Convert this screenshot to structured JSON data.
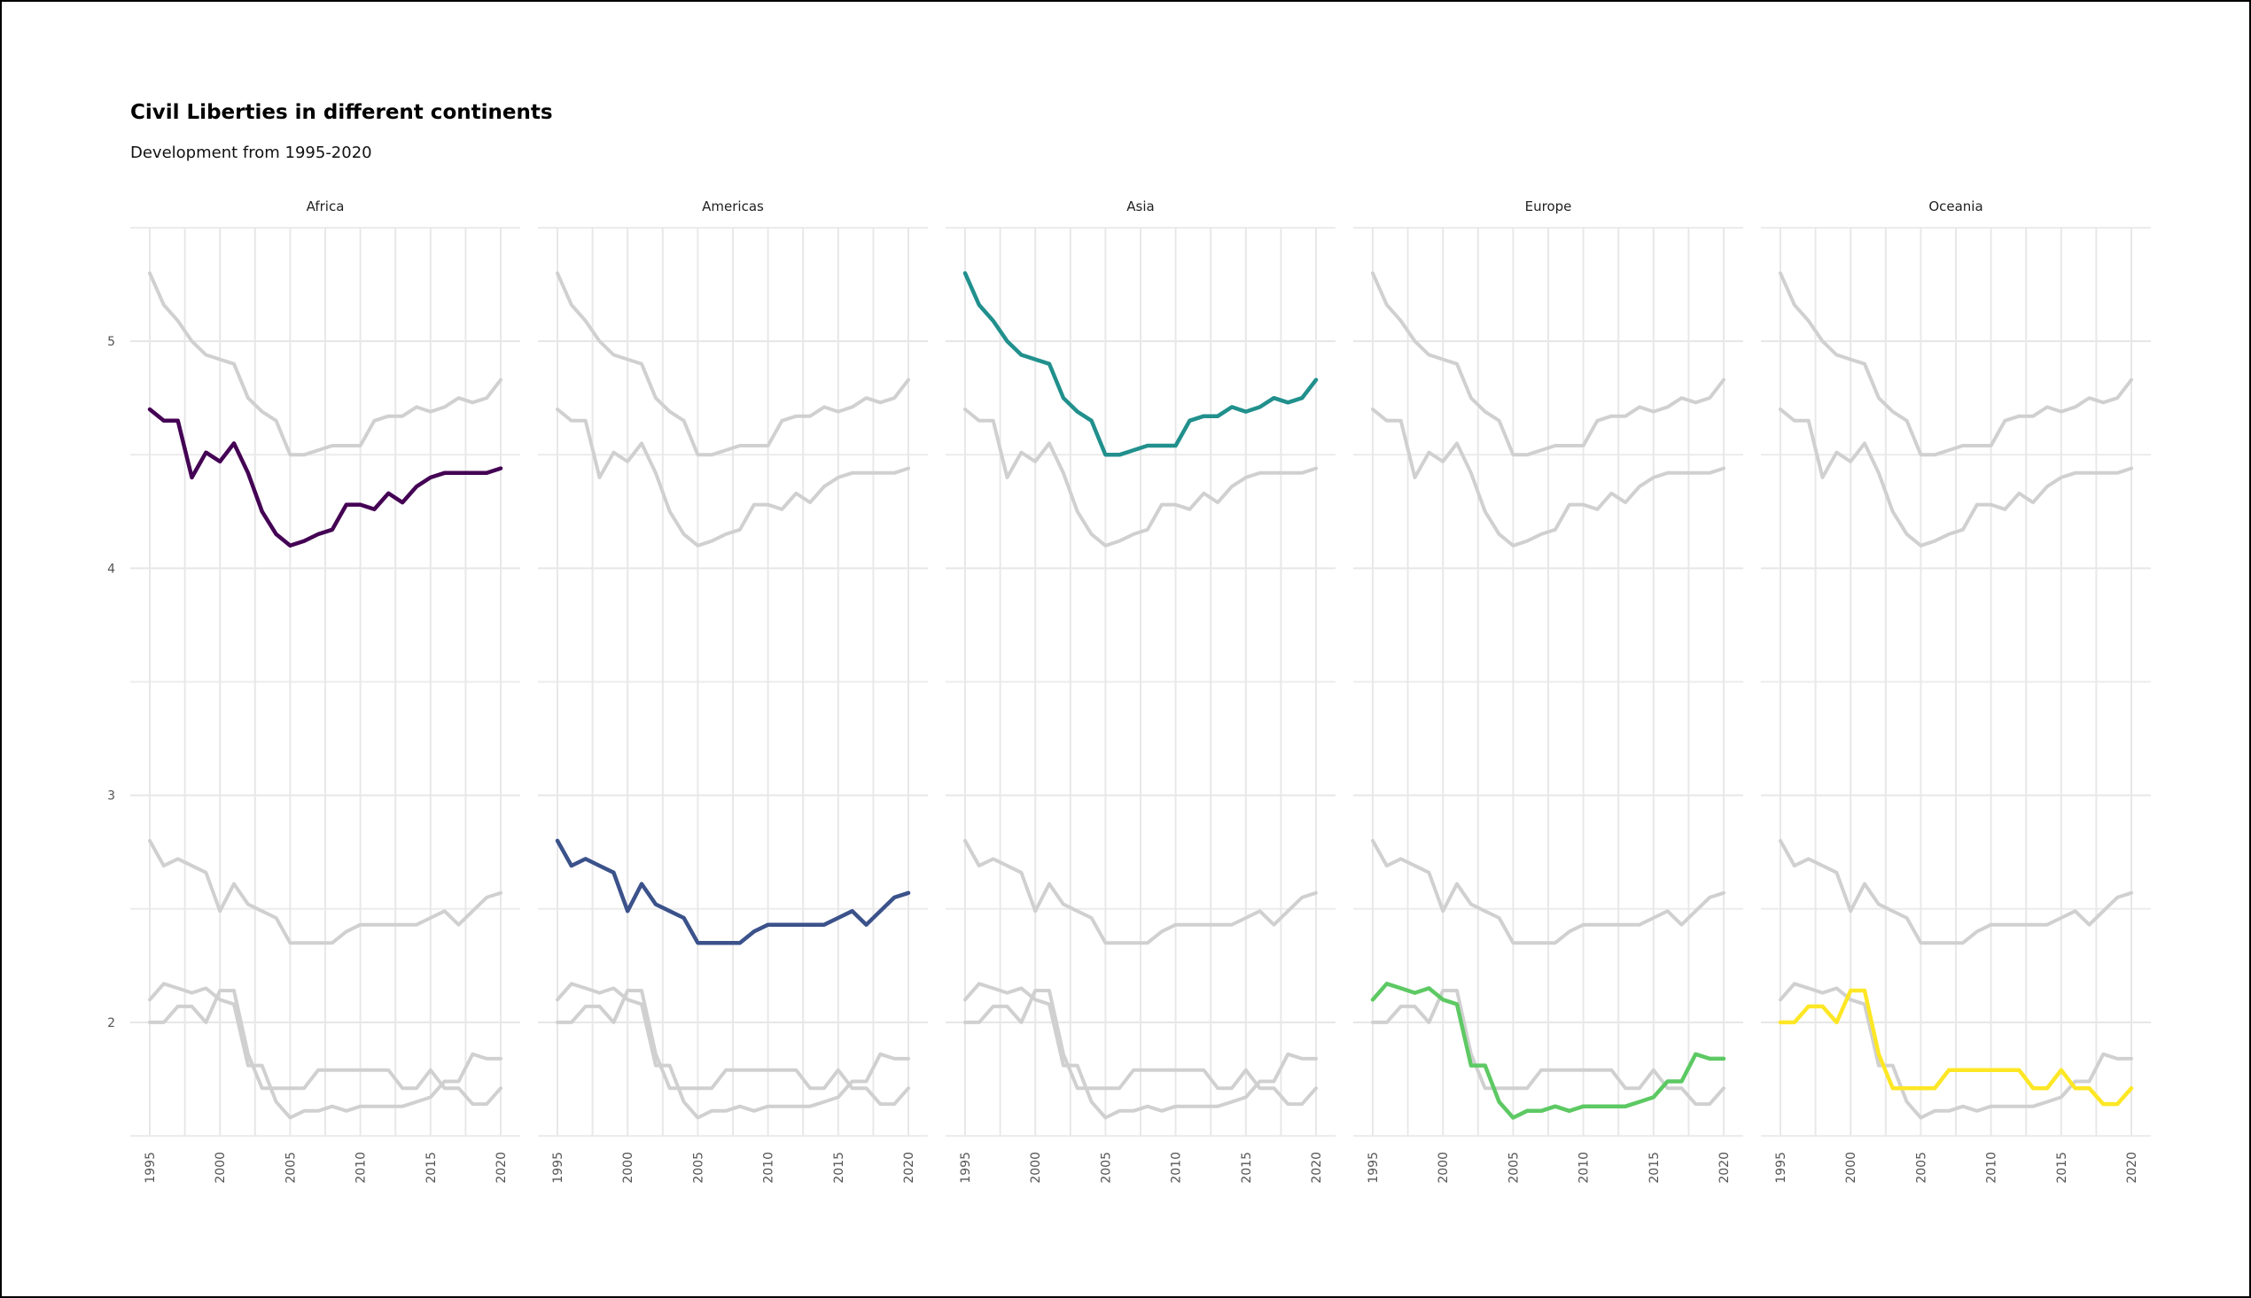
{
  "chart_data": {
    "type": "line",
    "title": "Civil Liberties in different continents",
    "subtitle": "Development from 1995-2020",
    "xlabel": "",
    "ylabel": "",
    "xlim": [
      1995,
      2020
    ],
    "ylim": [
      1.5,
      5.5
    ],
    "x_ticks": [
      "1995",
      "2000",
      "2005",
      "2010",
      "2015",
      "2020"
    ],
    "y_ticks": [
      "2",
      "3",
      "4",
      "5"
    ],
    "grid": true,
    "legend": "none",
    "background_color": "#d0d0d0",
    "x": [
      1995,
      1996,
      1997,
      1998,
      1999,
      2000,
      2001,
      2002,
      2003,
      2004,
      2005,
      2006,
      2007,
      2008,
      2009,
      2010,
      2011,
      2012,
      2013,
      2014,
      2015,
      2016,
      2017,
      2018,
      2019,
      2020
    ],
    "panels": [
      {
        "name": "Africa",
        "color": "#440154",
        "values": [
          4.7,
          4.65,
          4.65,
          4.4,
          4.51,
          4.47,
          4.55,
          4.42,
          4.25,
          4.15,
          4.1,
          4.12,
          4.15,
          4.17,
          4.28,
          4.28,
          4.26,
          4.33,
          4.29,
          4.36,
          4.4,
          4.42,
          4.42,
          4.42,
          4.42,
          4.44
        ]
      },
      {
        "name": "Americas",
        "color": "#3b528b",
        "values": [
          2.8,
          2.69,
          2.72,
          2.69,
          2.66,
          2.49,
          2.61,
          2.52,
          2.49,
          2.46,
          2.35,
          2.35,
          2.35,
          2.35,
          2.4,
          2.43,
          2.43,
          2.43,
          2.43,
          2.43,
          2.46,
          2.49,
          2.43,
          2.49,
          2.55,
          2.57
        ]
      },
      {
        "name": "Asia",
        "color": "#21908d",
        "values": [
          5.3,
          5.16,
          5.09,
          5.0,
          4.94,
          4.92,
          4.9,
          4.75,
          4.69,
          4.65,
          4.5,
          4.5,
          4.52,
          4.54,
          4.54,
          4.54,
          4.65,
          4.67,
          4.67,
          4.71,
          4.69,
          4.71,
          4.75,
          4.73,
          4.75,
          4.83
        ]
      },
      {
        "name": "Europe",
        "color": "#5dc963",
        "values": [
          2.1,
          2.17,
          2.15,
          2.13,
          2.15,
          2.1,
          2.08,
          1.81,
          1.81,
          1.65,
          1.58,
          1.61,
          1.61,
          1.63,
          1.61,
          1.63,
          1.63,
          1.63,
          1.63,
          1.65,
          1.67,
          1.74,
          1.74,
          1.86,
          1.84,
          1.84
        ]
      },
      {
        "name": "Oceania",
        "color": "#fde725",
        "values": [
          2.0,
          2.0,
          2.07,
          2.07,
          2.0,
          2.14,
          2.14,
          1.86,
          1.71,
          1.71,
          1.71,
          1.71,
          1.79,
          1.79,
          1.79,
          1.79,
          1.79,
          1.79,
          1.71,
          1.71,
          1.79,
          1.71,
          1.71,
          1.64,
          1.64,
          1.71
        ]
      }
    ]
  }
}
